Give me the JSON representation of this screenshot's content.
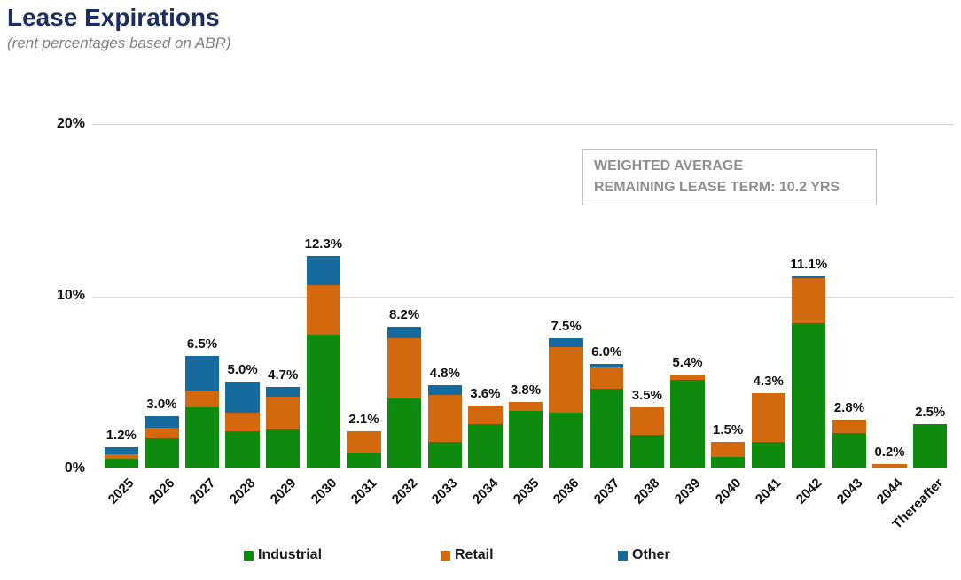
{
  "header": {
    "title": "Lease Expirations",
    "subtitle": "(rent percentages based on ABR)"
  },
  "annotation": {
    "line1": "WEIGHTED AVERAGE",
    "line2": "REMAINING LEASE TERM: 10.2 YRS"
  },
  "colors": {
    "industrial": "#0e8b0e",
    "retail": "#d2690e",
    "other": "#176a9e",
    "title": "#1a2e62",
    "subtitle": "#7f7f7f",
    "grid": "#d9d9d9",
    "annotation_text": "#8f8f8f",
    "annotation_border": "#bfbfbf"
  },
  "chart_data": {
    "type": "bar",
    "stacked": true,
    "title": "Lease Expirations",
    "subtitle": "(rent percentages based on ABR)",
    "xlabel": "",
    "ylabel": "",
    "categories": [
      "2025",
      "2026",
      "2027",
      "2028",
      "2029",
      "2030",
      "2031",
      "2032",
      "2033",
      "2034",
      "2035",
      "2036",
      "2037",
      "2038",
      "2039",
      "2040",
      "2041",
      "2042",
      "2043",
      "2044",
      "Thereafter"
    ],
    "series": [
      {
        "name": "Industrial",
        "color_key": "industrial",
        "values": [
          0.5,
          1.7,
          3.5,
          2.1,
          2.2,
          7.7,
          0.8,
          4.0,
          1.5,
          2.5,
          3.3,
          3.2,
          4.6,
          1.9,
          5.1,
          0.6,
          1.5,
          8.4,
          2.0,
          0.0,
          2.5
        ]
      },
      {
        "name": "Retail",
        "color_key": "retail",
        "values": [
          0.25,
          0.6,
          1.0,
          1.1,
          1.9,
          2.9,
          1.3,
          3.5,
          2.7,
          1.1,
          0.5,
          3.8,
          1.2,
          1.6,
          0.3,
          0.9,
          2.8,
          2.6,
          0.8,
          0.2,
          0.0
        ]
      },
      {
        "name": "Other",
        "color_key": "other",
        "values": [
          0.45,
          0.7,
          2.0,
          1.8,
          0.6,
          1.7,
          0.0,
          0.7,
          0.6,
          0.0,
          0.0,
          0.5,
          0.2,
          0.0,
          0.0,
          0.0,
          0.0,
          0.1,
          0.0,
          0.0,
          0.0
        ]
      }
    ],
    "totals": [
      1.2,
      3.0,
      6.5,
      5.0,
      4.7,
      12.3,
      2.1,
      8.2,
      4.8,
      3.6,
      3.8,
      7.5,
      6.0,
      3.5,
      5.4,
      1.5,
      4.3,
      11.1,
      2.8,
      0.2,
      2.5
    ],
    "total_labels": [
      "1.2%",
      "3.0%",
      "6.5%",
      "5.0%",
      "4.7%",
      "12.3%",
      "2.1%",
      "8.2%",
      "4.8%",
      "3.6%",
      "3.8%",
      "7.5%",
      "6.0%",
      "3.5%",
      "5.4%",
      "1.5%",
      "4.3%",
      "11.1%",
      "2.8%",
      "0.2%",
      "2.5%"
    ],
    "y_axis": {
      "ticks": [
        "0%",
        "10%",
        "20%"
      ],
      "max": 20,
      "gridlines": [
        0,
        10,
        20
      ]
    },
    "legend": {
      "position": "bottom",
      "entries": [
        "Industrial",
        "Retail",
        "Other"
      ]
    },
    "annotation": "WEIGHTED AVERAGE REMAINING LEASE TERM: 10.2 YRS"
  }
}
